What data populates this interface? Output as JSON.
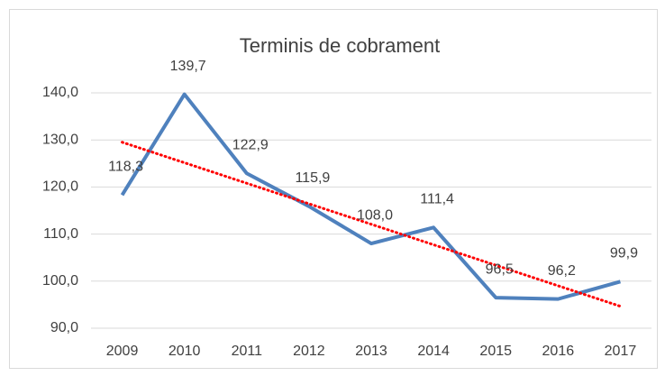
{
  "chart_data": {
    "type": "line",
    "title": "Terminis de cobrament",
    "categories": [
      "2009",
      "2010",
      "2011",
      "2012",
      "2013",
      "2014",
      "2015",
      "2016",
      "2017"
    ],
    "series": [
      {
        "color": "#4f81bd",
        "values": [
          118.3,
          139.7,
          122.9,
          115.9,
          108.0,
          111.4,
          96.5,
          96.2,
          99.9
        ],
        "value_labels": [
          "118,3",
          "139,7",
          "122,9",
          "115,9",
          "108,0",
          "111,4",
          "96,5",
          "96,2",
          "99,9"
        ]
      }
    ],
    "ylim": [
      90,
      140
    ],
    "yticks": [
      {
        "value": 90,
        "label": "90,0"
      },
      {
        "value": 100,
        "label": "100,0"
      },
      {
        "value": 110,
        "label": "110,0"
      },
      {
        "value": 120,
        "label": "120,0"
      },
      {
        "value": 130,
        "label": "130,0"
      },
      {
        "value": 140,
        "label": "140,0"
      }
    ],
    "grid": true,
    "trendline": {
      "type": "linear",
      "color": "#ff0000"
    }
  }
}
